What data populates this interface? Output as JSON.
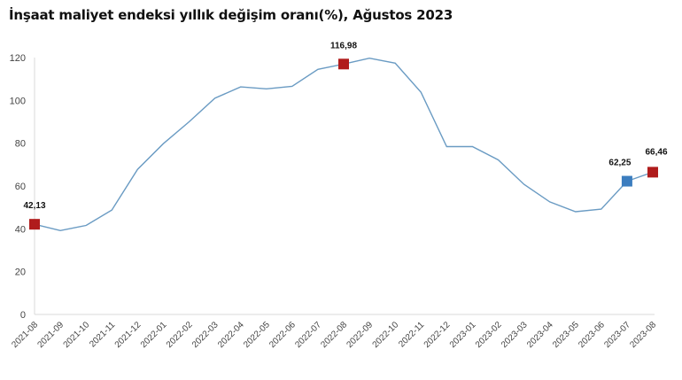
{
  "title": "İnşaat maliyet endeksi yıllık değişim oranı(%), Ağustos 2023",
  "colors": {
    "line": "#6a9bc3",
    "highlight_marker": "#b01c1c",
    "previous_marker": "#3b7dbf",
    "axis": "#d9d9d9",
    "tick_text": "#444444"
  },
  "chart_data": {
    "type": "line",
    "title": "İnşaat maliyet endeksi yıllık değişim oranı(%), Ağustos 2023",
    "xlabel": "",
    "ylabel": "",
    "ylim": [
      0,
      120
    ],
    "yticks": [
      0,
      20,
      40,
      60,
      80,
      100,
      120
    ],
    "grid": false,
    "legend": null,
    "categories": [
      "2021-08",
      "2021-09",
      "2021-10",
      "2021-11",
      "2021-12",
      "2022-01",
      "2022-02",
      "2022-03",
      "2022-04",
      "2022-05",
      "2022-06",
      "2022-07",
      "2022-08",
      "2022-09",
      "2022-10",
      "2022-11",
      "2022-12",
      "2023-01",
      "2023-02",
      "2023-03",
      "2023-04",
      "2023-05",
      "2023-06",
      "2023-07",
      "2023-08"
    ],
    "series": [
      {
        "name": "Yıllık değişim oranı (%)",
        "values": [
          42.13,
          39.2,
          41.6,
          48.8,
          67.8,
          79.8,
          90.0,
          101.0,
          106.3,
          105.4,
          106.6,
          114.5,
          116.98,
          119.7,
          117.4,
          103.8,
          78.4,
          78.4,
          72.2,
          60.8,
          52.6,
          48.0,
          49.2,
          62.25,
          66.46
        ]
      }
    ],
    "annotations": [
      {
        "category": "2021-08",
        "label": "42,13",
        "marker": "red-square"
      },
      {
        "category": "2022-08",
        "label": "116,98",
        "marker": "red-square"
      },
      {
        "category": "2023-07",
        "label": "62,25",
        "marker": "blue-square"
      },
      {
        "category": "2023-08",
        "label": "66,46",
        "marker": "red-square"
      }
    ]
  }
}
